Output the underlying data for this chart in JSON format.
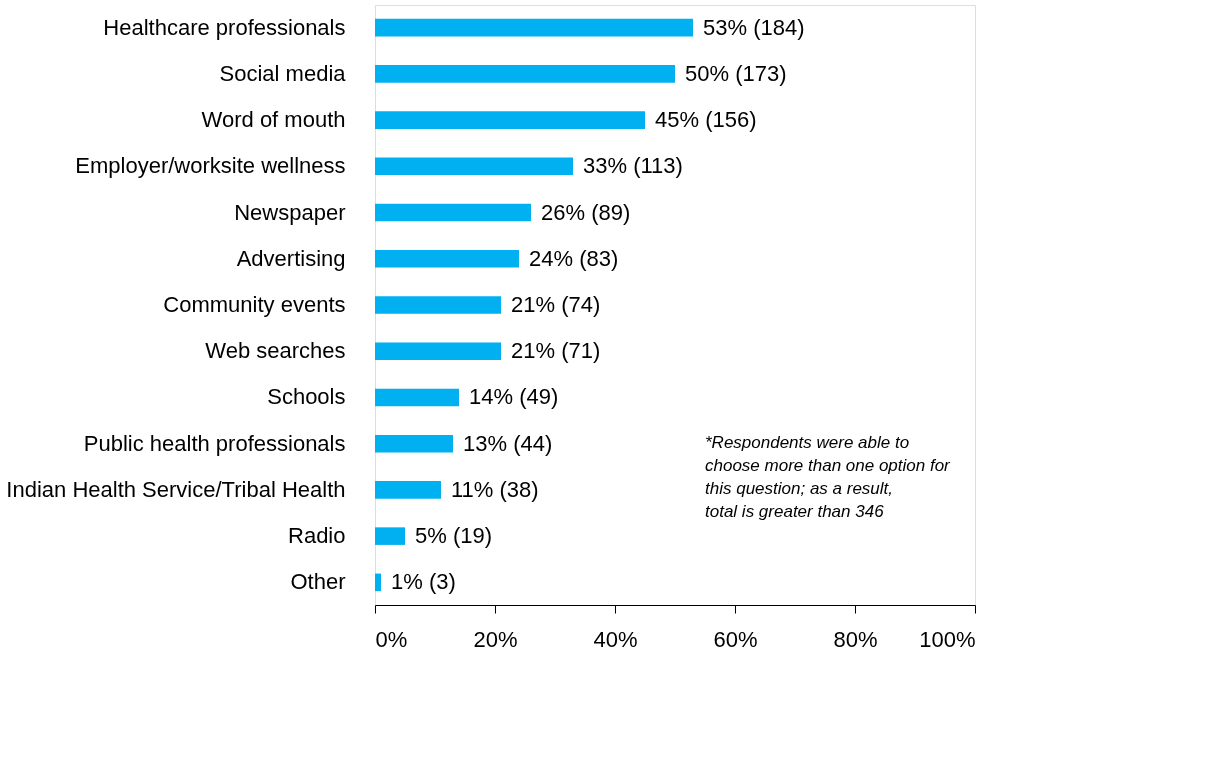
{
  "chart_data": {
    "type": "bar",
    "orientation": "horizontal",
    "categories": [
      "Healthcare professionals",
      "Social media",
      "Word of mouth",
      "Employer/worksite wellness",
      "Newspaper",
      "Advertising",
      "Community events",
      "Web searches",
      "Schools",
      "Public health professionals",
      "Indian Health Service/Tribal Health",
      "Radio",
      "Other"
    ],
    "values": [
      53,
      50,
      45,
      33,
      26,
      24,
      21,
      21,
      14,
      13,
      11,
      5,
      1
    ],
    "value_labels": [
      "53% (184)",
      "50% (173)",
      "45% (156)",
      "33% (113)",
      "26% (89)",
      "24% (83)",
      "21% (74)",
      "21% (71)",
      "14% (49)",
      "13% (44)",
      "11% (38)",
      "5% (19)",
      "1% (3)"
    ],
    "color": "#00b0f0",
    "xlim": [
      0,
      100
    ],
    "xticks": [
      {
        "value": 0,
        "label": "0%"
      },
      {
        "value": 20,
        "label": "20%"
      },
      {
        "value": 40,
        "label": "40%"
      },
      {
        "value": 60,
        "label": "60%"
      },
      {
        "value": 80,
        "label": "80%"
      },
      {
        "value": 100,
        "label": "100%"
      }
    ],
    "annotations": [
      "*Respondents were able to choose more than one option for this question; as a result, total is greater than 346"
    ]
  }
}
